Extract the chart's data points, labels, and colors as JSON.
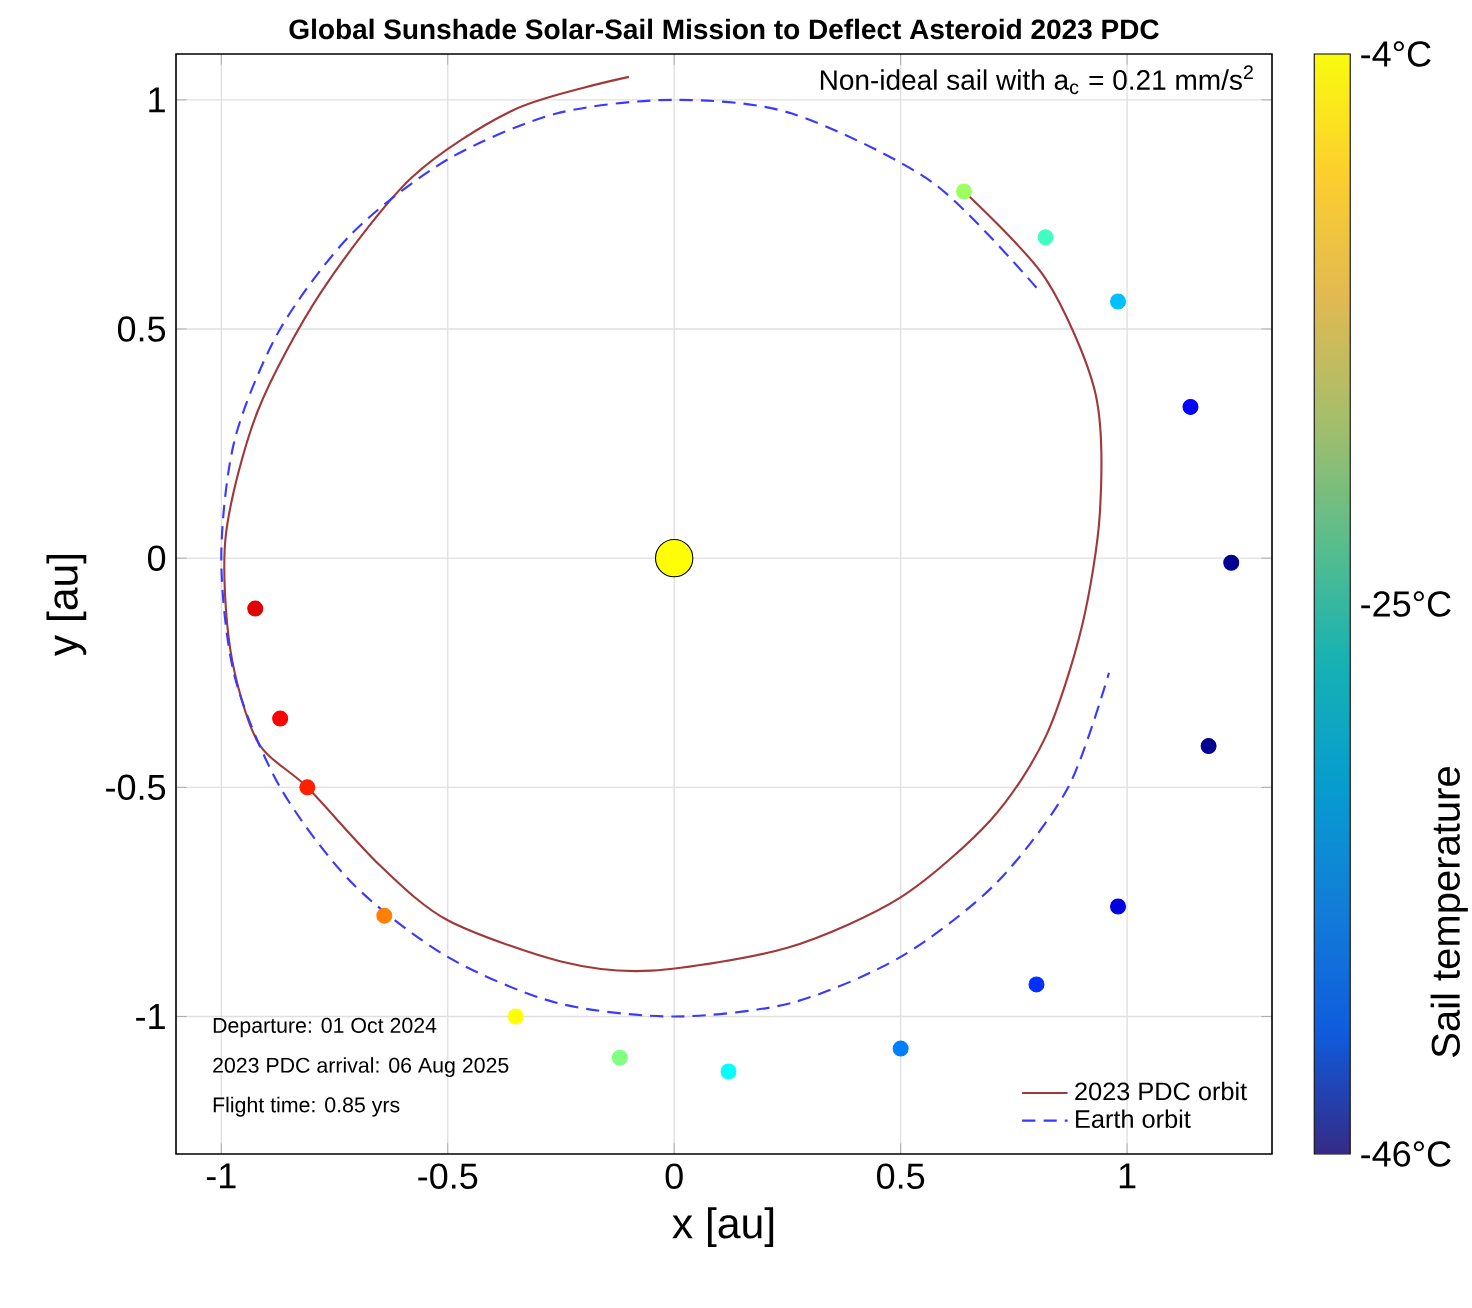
{
  "chart_data": {
    "type": "line",
    "title": "Global Sunshade Solar-Sail Mission to Deflect Asteroid 2023 PDC",
    "subtitle": "Non-ideal sail with a$_{c}$ = 0.21 mm/s$^{2}$",
    "xlabel": "x [au]",
    "ylabel": "y [au]",
    "clabel": "Sail temperature",
    "annotations": [
      "Departure: 01 Oct 2024",
      "2023 PDC arrival: 06 Aug 2025",
      "Flight time: 0.85 yrs"
    ],
    "xlim": [
      -1.1,
      1.32
    ],
    "ylim": [
      -1.3,
      1.1
    ],
    "xticks": [
      -1,
      -0.5,
      0,
      0.5,
      1
    ],
    "yticks": [
      -1,
      -0.5,
      0,
      0.5,
      1
    ],
    "clim": [
      -46,
      -4
    ],
    "cticks": [
      {
        "value": -46,
        "label": "-46°C"
      },
      {
        "value": -25,
        "label": "-25°C"
      },
      {
        "value": -4,
        "label": "-4°C"
      }
    ],
    "grid": true,
    "legend": "bottom right",
    "series": [
      {
        "name": "2023 PDC orbit",
        "color": "#a03a3a",
        "line_style": "solid",
        "x": [
          -0.1,
          -0.35,
          -0.58,
          -0.78,
          -0.92,
          -0.99,
          -0.98,
          -0.92,
          -0.81,
          -0.65,
          -0.5,
          -0.25,
          -0.05,
          0.25,
          0.5,
          0.7,
          0.82,
          0.9,
          0.94,
          0.93,
          0.82,
          0.64
        ],
        "values": [
          1.05,
          0.98,
          0.83,
          0.58,
          0.32,
          0.05,
          -0.2,
          -0.4,
          -0.5,
          -0.67,
          -0.79,
          -0.88,
          -0.9,
          -0.85,
          -0.74,
          -0.57,
          -0.39,
          -0.15,
          0.1,
          0.36,
          0.61,
          0.8
        ]
      },
      {
        "name": "Earth orbit",
        "color": "#3a3aff",
        "line_style": "dashed",
        "x": [
          0.8,
          0.57,
          0.26,
          0.0,
          -0.26,
          -0.5,
          -0.71,
          -0.87,
          -0.97,
          -1.0,
          -0.97,
          -0.87,
          -0.71,
          -0.5,
          -0.26,
          0.0,
          0.26,
          0.5,
          0.71,
          0.87,
          0.96
        ],
        "values": [
          0.59,
          0.82,
          0.97,
          1.0,
          0.97,
          0.87,
          0.71,
          0.5,
          0.26,
          0.0,
          -0.26,
          -0.5,
          -0.71,
          -0.87,
          -0.97,
          -1.0,
          -0.97,
          -0.87,
          -0.71,
          -0.5,
          -0.25
        ]
      },
      {
        "type": "scatter",
        "x": [
          -0.925,
          -0.87,
          -0.81,
          -0.64,
          -0.35,
          -0.12,
          0.12,
          0.5,
          0.8,
          0.98,
          1.18,
          1.23,
          1.14,
          0.98,
          0.82,
          0.64
        ],
        "values": [
          -0.11,
          -0.35,
          -0.5,
          -0.78,
          -1.0,
          -1.09,
          -1.12,
          -1.07,
          -0.93,
          -0.76,
          -0.41,
          -0.01,
          0.33,
          0.56,
          0.7,
          0.8
        ],
        "colors": [
          "#e00000",
          "#ff0000",
          "#ff2000",
          "#ff8000",
          "#ffff00",
          "#80ff80",
          "#00ffff",
          "#0080ff",
          "#0030ff",
          "#0000e0",
          "#000090",
          "#000090",
          "#0000ff",
          "#00c0ff",
          "#40ffc0",
          "#a0ff60"
        ]
      },
      {
        "type": "bubble",
        "color": "#ffff00",
        "x": [
          0
        ],
        "values": [
          0
        ],
        "sizes": [
          1
        ]
      }
    ]
  }
}
